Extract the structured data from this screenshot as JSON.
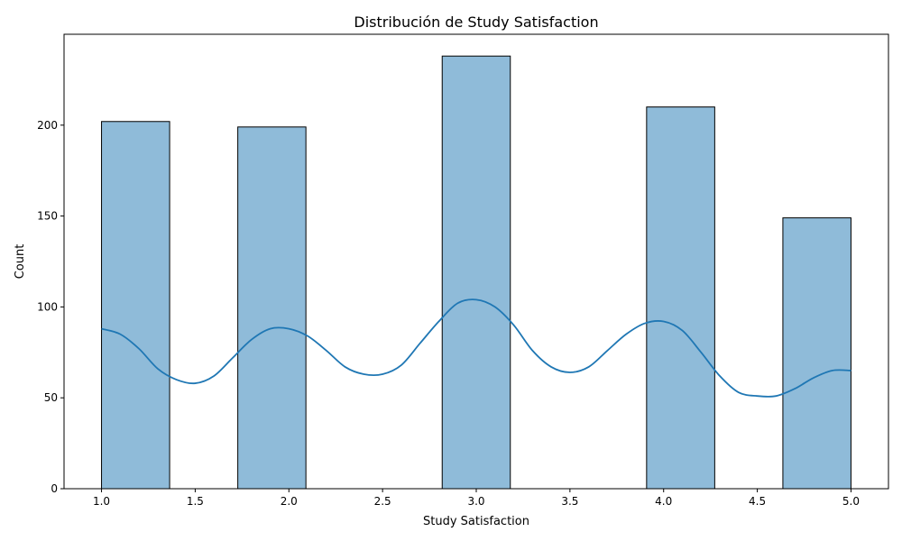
{
  "chart_data": {
    "type": "bar",
    "title": "Distribución de Study Satisfaction",
    "xlabel": "Study Satisfaction",
    "ylabel": "Count",
    "xlim": [
      0.8,
      5.2
    ],
    "ylim": [
      0,
      250
    ],
    "xticks": [
      1.0,
      1.5,
      2.0,
      2.5,
      3.0,
      3.5,
      4.0,
      4.5,
      5.0
    ],
    "xtick_labels": [
      "1.0",
      "1.5",
      "2.0",
      "2.5",
      "3.0",
      "3.5",
      "4.0",
      "4.5",
      "5.0"
    ],
    "yticks": [
      0,
      50,
      100,
      150,
      200
    ],
    "ytick_labels": [
      "0",
      "50",
      "100",
      "150",
      "200"
    ],
    "bins": [
      {
        "x0": 1.0,
        "x1": 1.3636,
        "count": 202
      },
      {
        "x0": 1.7273,
        "x1": 2.0909,
        "count": 199
      },
      {
        "x0": 2.8182,
        "x1": 3.1818,
        "count": 238
      },
      {
        "x0": 3.9091,
        "x1": 4.2727,
        "count": 210
      },
      {
        "x0": 4.6364,
        "x1": 5.0,
        "count": 149
      }
    ],
    "kde_curve": {
      "x": [
        1.0,
        1.1,
        1.2,
        1.3,
        1.4,
        1.5,
        1.6,
        1.7,
        1.8,
        1.9,
        2.0,
        2.1,
        2.2,
        2.3,
        2.4,
        2.5,
        2.6,
        2.7,
        2.8,
        2.9,
        3.0,
        3.1,
        3.2,
        3.3,
        3.4,
        3.5,
        3.6,
        3.7,
        3.8,
        3.9,
        4.0,
        4.1,
        4.2,
        4.3,
        4.4,
        4.5,
        4.6,
        4.7,
        4.8,
        4.9,
        5.0
      ],
      "y": [
        88,
        85,
        77,
        66,
        60,
        58,
        62,
        72,
        82,
        88,
        88,
        84,
        76,
        67,
        63,
        63,
        68,
        80,
        92,
        102,
        104,
        100,
        90,
        76,
        67,
        64,
        67,
        76,
        85,
        91,
        92,
        87,
        75,
        62,
        53,
        51,
        51,
        55,
        61,
        65,
        65
      ]
    },
    "colors": {
      "bar_fill": "#8fbbd9",
      "bar_edge": "#000000",
      "kde_line": "#1f77b4"
    },
    "grid": false,
    "legend": "none"
  }
}
